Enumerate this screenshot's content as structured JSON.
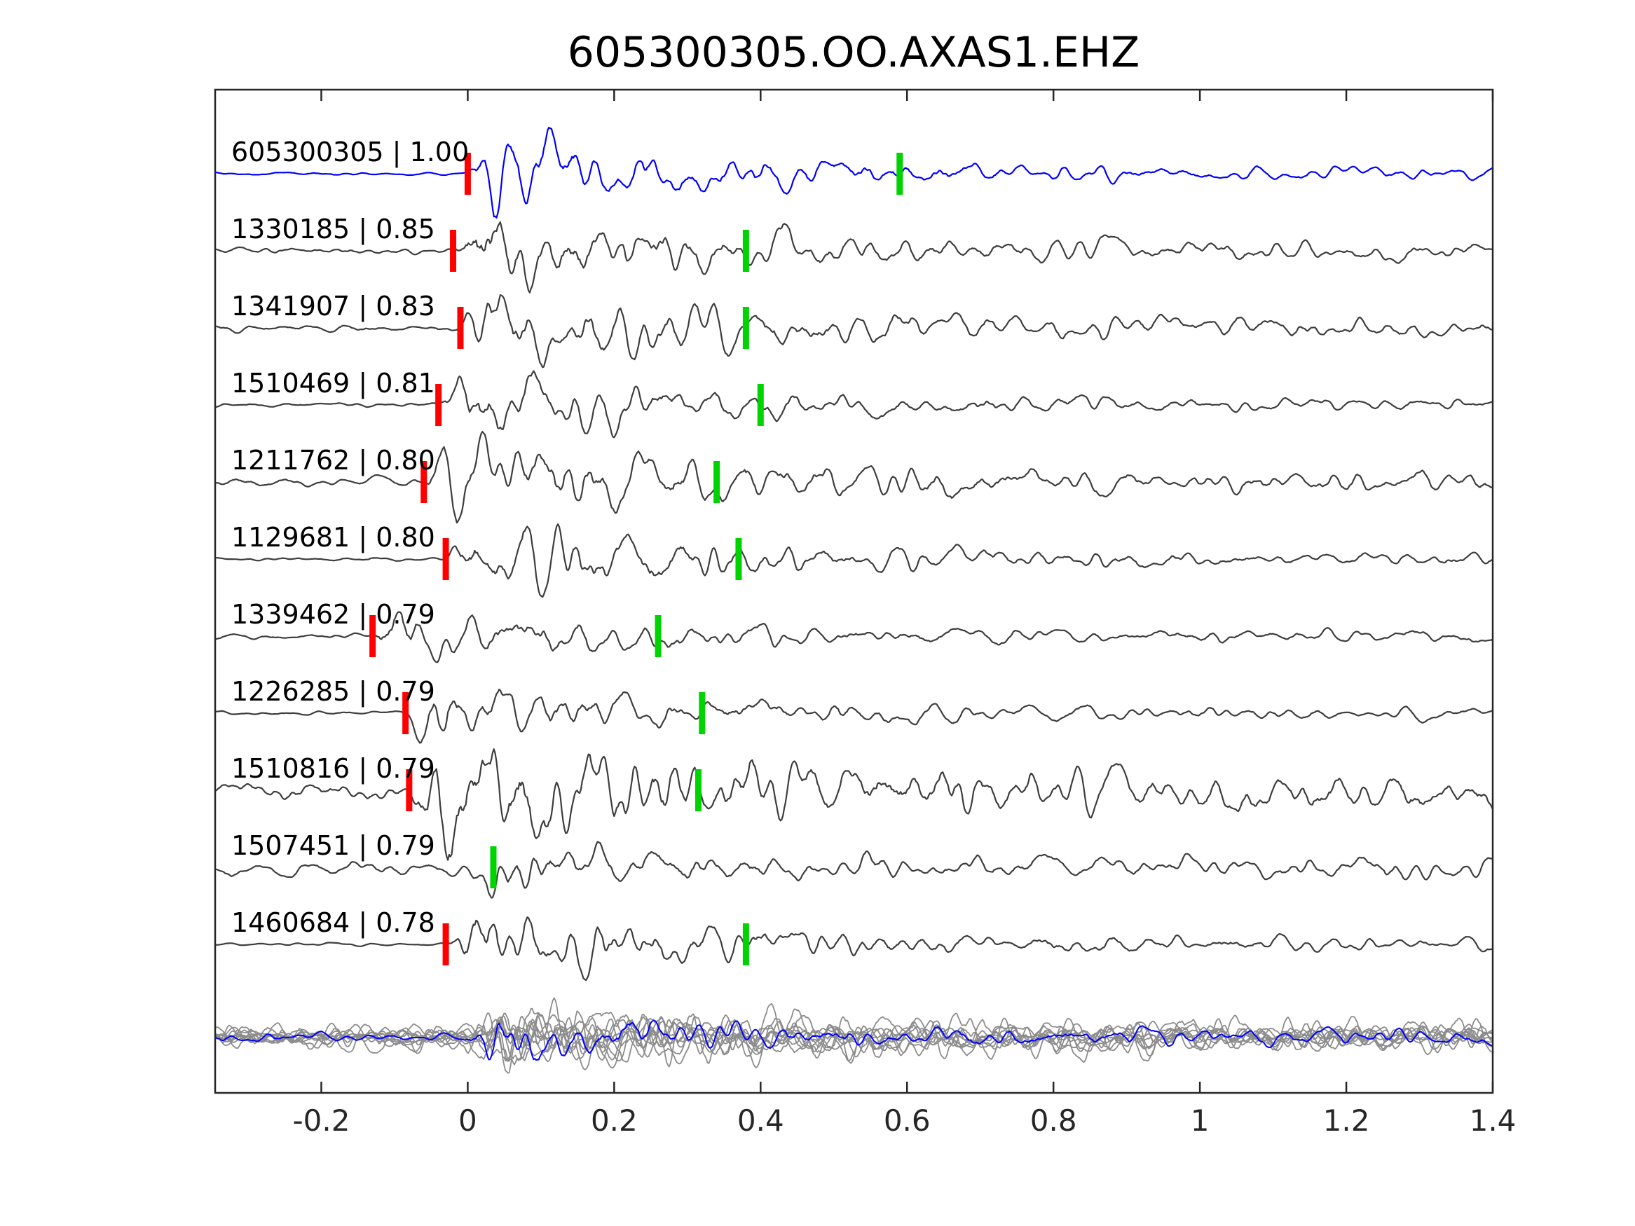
{
  "title": "605300305.OO.AXAS1.EHZ",
  "chart_data": {
    "type": "line",
    "title": "605300305.OO.AXAS1.EHZ",
    "description": "Stacked seismic waveform traces: template event (blue, top) and cross-correlated detections (gray) labeled 'event_id | correlation'. Red vertical bars are P picks, green vertical bars are S picks. Bottom row shows all matched traces overlaid in gray with the template in blue.",
    "station_channel": "OO.AXAS1.EHZ",
    "xlabel": "",
    "ylabel": "",
    "xlim": [
      -0.345,
      1.4
    ],
    "x_ticks": [
      -0.2,
      0,
      0.2,
      0.4,
      0.6,
      0.8,
      1,
      1.2,
      1.4
    ],
    "x_tick_labels": [
      "-0.2",
      "0",
      "0.2",
      "0.4",
      "0.6",
      "0.8",
      "1",
      "1.2",
      "1.4"
    ],
    "grid": false,
    "legend": false,
    "colors": {
      "template_trace": "#0000ff",
      "match_trace": "#3d3d3d",
      "stack_trace": "#8c8c8c",
      "stack_overlay": "#0000ff",
      "p_pick": "#ff0000",
      "s_pick": "#00d400",
      "axis": "#262626",
      "text": "#000000",
      "background": "#ffffff"
    },
    "traces": [
      {
        "label": "605300305 | 1.00",
        "event_id": "605300305",
        "correlation": 1.0,
        "role": "template",
        "p_pick": 0.0,
        "s_pick": 0.59,
        "onset": 0.0,
        "amp": 1.0,
        "pre_noise": 0.1,
        "coda": 1.0,
        "seed": 11
      },
      {
        "label": "1330185 | 0.85",
        "event_id": "1330185",
        "correlation": 0.85,
        "role": "match",
        "p_pick": -0.02,
        "s_pick": 0.38,
        "onset": -0.02,
        "amp": 0.95,
        "pre_noise": 0.25,
        "coda": 1.1,
        "seed": 22
      },
      {
        "label": "1341907 | 0.83",
        "event_id": "1341907",
        "correlation": 0.83,
        "role": "match",
        "p_pick": -0.01,
        "s_pick": 0.38,
        "onset": -0.01,
        "amp": 1.0,
        "pre_noise": 0.28,
        "coda": 1.1,
        "seed": 33
      },
      {
        "label": "1510469 | 0.81",
        "event_id": "1510469",
        "correlation": 0.81,
        "role": "match",
        "p_pick": -0.04,
        "s_pick": 0.4,
        "onset": -0.04,
        "amp": 0.85,
        "pre_noise": 0.15,
        "coda": 1.0,
        "seed": 44
      },
      {
        "label": "1211762 | 0.80",
        "event_id": "1211762",
        "correlation": 0.8,
        "role": "match",
        "p_pick": -0.06,
        "s_pick": 0.34,
        "onset": -0.06,
        "amp": 0.95,
        "pre_noise": 0.3,
        "coda": 1.6,
        "seed": 55
      },
      {
        "label": "1129681 | 0.80",
        "event_id": "1129681",
        "correlation": 0.8,
        "role": "match",
        "p_pick": -0.03,
        "s_pick": 0.37,
        "onset": -0.03,
        "amp": 0.9,
        "pre_noise": 0.12,
        "coda": 1.1,
        "seed": 66
      },
      {
        "label": "1339462 | 0.79",
        "event_id": "1339462",
        "correlation": 0.79,
        "role": "match",
        "p_pick": -0.13,
        "s_pick": 0.26,
        "onset": -0.13,
        "amp": 0.6,
        "pre_noise": 0.2,
        "coda": 1.2,
        "seed": 77
      },
      {
        "label": "1226285 | 0.79",
        "event_id": "1226285",
        "correlation": 0.79,
        "role": "match",
        "p_pick": -0.085,
        "s_pick": 0.32,
        "onset": -0.085,
        "amp": 0.85,
        "pre_noise": 0.15,
        "coda": 1.0,
        "seed": 88
      },
      {
        "label": "1510816 | 0.79",
        "event_id": "1510816",
        "correlation": 0.79,
        "role": "match",
        "p_pick": -0.08,
        "s_pick": 0.315,
        "onset": -0.08,
        "amp": 1.0,
        "pre_noise": 0.6,
        "coda": 2.4,
        "seed": 99
      },
      {
        "label": "1507451 | 0.79",
        "event_id": "1507451",
        "correlation": 0.79,
        "role": "match",
        "p_pick": null,
        "s_pick": 0.035,
        "onset": 0.0,
        "amp": 0.55,
        "pre_noise": 0.5,
        "coda": 1.3,
        "seed": 110
      },
      {
        "label": "1460684 | 0.78",
        "event_id": "1460684",
        "correlation": 0.78,
        "role": "match",
        "p_pick": -0.03,
        "s_pick": 0.38,
        "onset": -0.03,
        "amp": 0.95,
        "pre_noise": 0.1,
        "coda": 1.1,
        "seed": 121
      }
    ],
    "stack": {
      "count": 10,
      "onset": 0.0,
      "amp": 0.62,
      "pre_noise": 0.7,
      "overlay_amp": 0.6,
      "overlay_pre_noise": 0.3,
      "overlay_seed": 555
    }
  }
}
